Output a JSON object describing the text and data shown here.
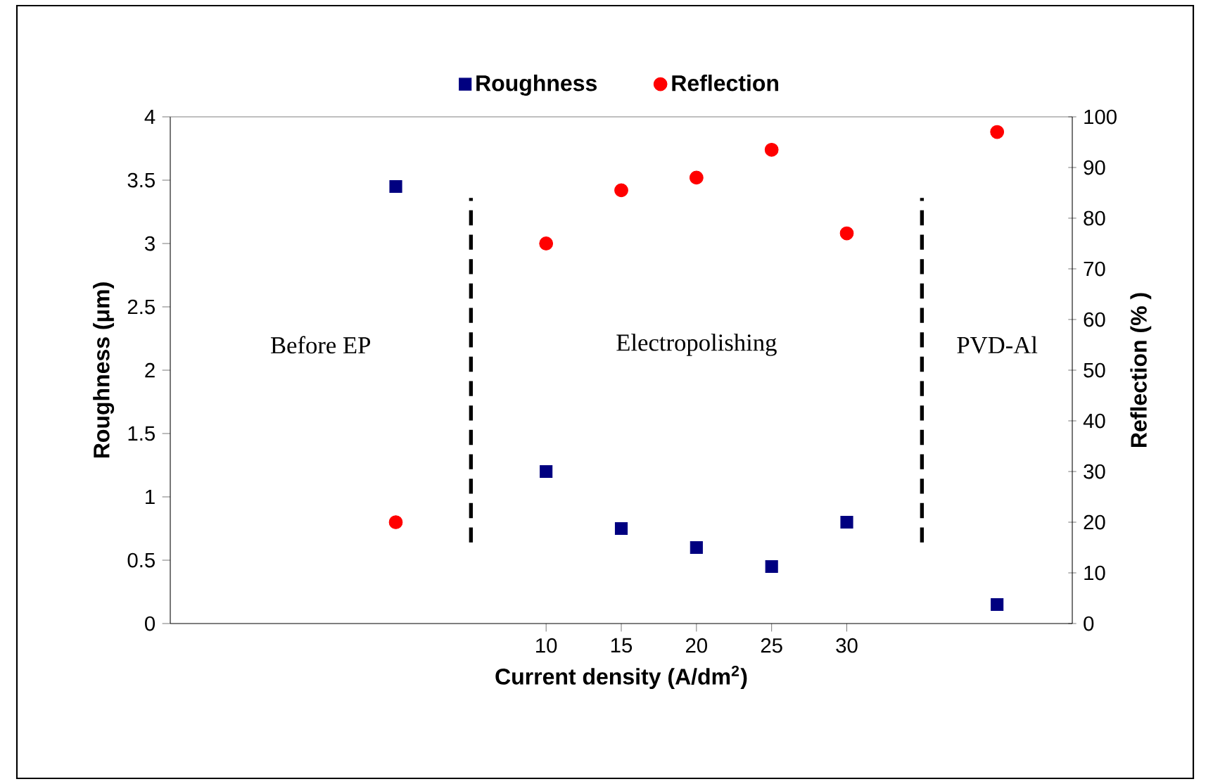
{
  "chart_data": {
    "type": "scatter",
    "xlabel": "Current density (A/dm$^{2}$)",
    "ylabel": "Roughness (μm)",
    "y2label": "Reflection (% )",
    "x": [
      0,
      10,
      15,
      20,
      25,
      30,
      40
    ],
    "xlim": [
      -15,
      45
    ],
    "xticks": [
      10,
      15,
      20,
      25,
      30
    ],
    "ylim": [
      0,
      4
    ],
    "yticks": [
      0,
      0.5,
      1,
      1.5,
      2,
      2.5,
      3,
      3.5,
      4
    ],
    "y2lim": [
      0,
      100
    ],
    "y2ticks": [
      0,
      10,
      20,
      30,
      40,
      50,
      60,
      70,
      80,
      90,
      100
    ],
    "series": [
      {
        "name": "Roughness",
        "color": "#000080",
        "marker": "square",
        "values": [
          3.45,
          1.2,
          0.75,
          0.6,
          0.45,
          0.8,
          0.15
        ]
      },
      {
        "name": "Reflection",
        "color": "#ff0000",
        "marker": "circle",
        "axis": "y2",
        "values": [
          20,
          75,
          85.5,
          88,
          93.5,
          77,
          97
        ]
      }
    ],
    "ref_lines": [
      {
        "axis": "x",
        "value": 5,
        "color": "#000000",
        "line_style": "dashed"
      },
      {
        "axis": "x",
        "value": 35,
        "color": "#000000",
        "line_style": "dashed"
      }
    ],
    "annotations": [
      "Before EP",
      "Electropolishing",
      "PVD-Al"
    ],
    "legend": "top",
    "grid": false
  }
}
